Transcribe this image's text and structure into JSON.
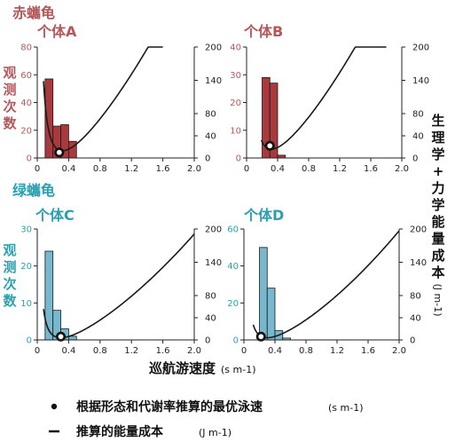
{
  "colors": {
    "red_text": "#b5585a",
    "red_fill": "#a8393c",
    "teal_text": "#2aa0b0",
    "teal_fill": "#78b8cf",
    "curve": "#1a1a1a",
    "axis": "#222222"
  },
  "labels": {
    "species_red": "赤蠵龟",
    "species_green": "绿蠵龟",
    "left_ylabel_chars": [
      "观",
      "测",
      "次",
      "数"
    ],
    "right_ylabel_chars": [
      "生",
      "理",
      "学",
      "+",
      "力",
      "学",
      "能",
      "量",
      "成",
      "本"
    ],
    "right_ylabel_unit": "(J m-1)",
    "xlabel": "巡航游速度",
    "xlabel_unit": "(s m-1)"
  },
  "legend": {
    "dot_label": "根据形态和代谢率推算的最优泳速",
    "dot_unit": "(s m-1)",
    "line_label": "推算的能量成本",
    "line_unit": "(J m-1)"
  },
  "chart_data": [
    {
      "type": "bar",
      "title": "个体A",
      "species": "red",
      "bin_width": 0.1,
      "bins": [
        {
          "x": 0.1,
          "count": 57
        },
        {
          "x": 0.2,
          "count": 23
        },
        {
          "x": 0.3,
          "count": 24
        },
        {
          "x": 0.4,
          "count": 12
        }
      ],
      "left_ylim": [
        0,
        80
      ],
      "left_yticks": [
        0,
        20,
        40,
        60,
        80
      ],
      "right_ylim": [
        0,
        200
      ],
      "right_yticks": [
        0,
        40,
        80,
        140,
        200
      ],
      "xlim": [
        0,
        2.0
      ],
      "xticks": [
        "0",
        "0.4",
        "0.8",
        "1.2",
        "1.6",
        "2.0"
      ],
      "curve": {
        "vmin": 0.32,
        "cmin": 13,
        "a": 55,
        "b": 35,
        "xstart": 0.08,
        "xend": 1.6
      },
      "optimal_speed": {
        "x": 0.28,
        "y": 10
      }
    },
    {
      "type": "bar",
      "title": "个体B",
      "species": "red",
      "bin_width": 0.1,
      "bins": [
        {
          "x": 0.2,
          "count": 29
        },
        {
          "x": 0.3,
          "count": 27
        },
        {
          "x": 0.4,
          "count": 1
        }
      ],
      "left_ylim": [
        0,
        40
      ],
      "left_yticks": [
        0,
        10,
        20,
        30,
        40
      ],
      "right_ylim": [
        0,
        200
      ],
      "right_yticks": [
        0,
        40,
        80,
        140,
        200
      ],
      "xlim": [
        0,
        2.0
      ],
      "xticks": [
        "0",
        "0.4",
        "0.8",
        "1.2",
        "1.6",
        "2.0"
      ],
      "curve": {
        "vmin": 0.32,
        "cmin": 16,
        "a": 55,
        "b": 35,
        "xstart": 0.19,
        "xend": 1.8
      },
      "optimal_speed": {
        "x": 0.3,
        "y": 22
      }
    },
    {
      "type": "bar",
      "title": "个体C",
      "species": "green",
      "bin_width": 0.1,
      "bins": [
        {
          "x": 0.1,
          "count": 24
        },
        {
          "x": 0.2,
          "count": 8
        },
        {
          "x": 0.3,
          "count": 3
        },
        {
          "x": 0.4,
          "count": 1
        }
      ],
      "left_ylim": [
        0,
        30
      ],
      "left_yticks": [
        0,
        10,
        20,
        30
      ],
      "right_ylim": [
        0,
        200
      ],
      "right_yticks": [
        0,
        40,
        80,
        140,
        200
      ],
      "xlim": [
        0,
        2.0
      ],
      "xticks": [
        "0",
        "0.4",
        "0.8",
        "1.2",
        "1.6",
        "2.0"
      ],
      "curve": {
        "vmin": 0.3,
        "cmin": 4,
        "a": 25,
        "b": 23,
        "xstart": 0.08,
        "xend": 2.0
      },
      "optimal_speed": {
        "x": 0.3,
        "y": 6
      }
    },
    {
      "type": "bar",
      "title": "个体D",
      "species": "green",
      "bin_width": 0.1,
      "bins": [
        {
          "x": 0.2,
          "count": 50
        },
        {
          "x": 0.3,
          "count": 28
        },
        {
          "x": 0.4,
          "count": 5
        },
        {
          "x": 0.5,
          "count": 1
        }
      ],
      "left_ylim": [
        0,
        60
      ],
      "left_yticks": [
        0,
        20,
        40,
        60
      ],
      "right_ylim": [
        0,
        200
      ],
      "right_yticks": [
        0,
        40,
        80,
        140,
        200
      ],
      "xlim": [
        0,
        2.0
      ],
      "xticks": [
        "0",
        "0.4",
        "0.8",
        "1.2",
        "1.6",
        "2.0"
      ],
      "curve": {
        "vmin": 0.3,
        "cmin": 4,
        "a": 25,
        "b": 25,
        "xstart": 0.12,
        "xend": 2.0
      },
      "optimal_speed": {
        "x": 0.22,
        "y": 6
      }
    }
  ]
}
